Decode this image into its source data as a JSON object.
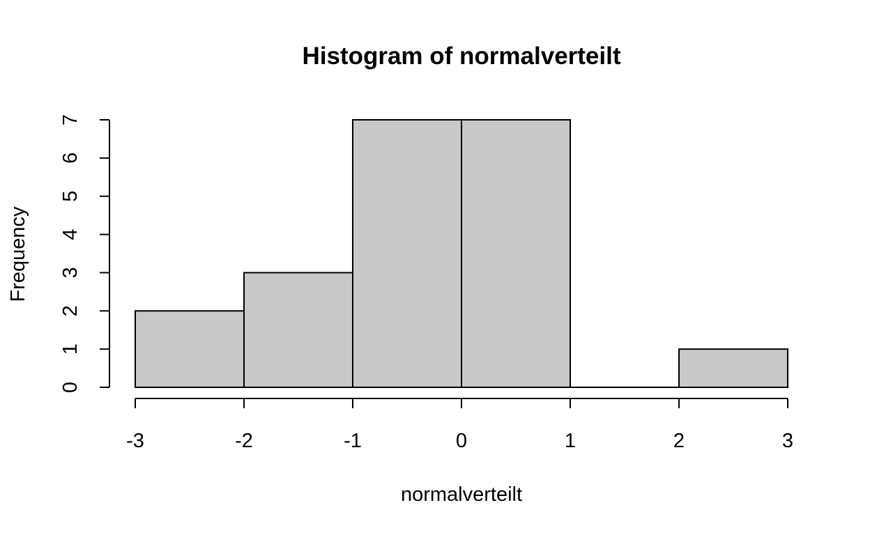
{
  "chart_data": {
    "type": "bar",
    "subtype": "histogram",
    "title": "Histogram of normalverteilt",
    "xlabel": "normalverteilt",
    "ylabel": "Frequency",
    "bins": [
      {
        "from": -3,
        "to": -2,
        "count": 2
      },
      {
        "from": -2,
        "to": -1,
        "count": 3
      },
      {
        "from": -1,
        "to": 0,
        "count": 7
      },
      {
        "from": 0,
        "to": 1,
        "count": 7
      },
      {
        "from": 1,
        "to": 2,
        "count": 0
      },
      {
        "from": 2,
        "to": 3,
        "count": 1
      }
    ],
    "xlim": [
      -3,
      3
    ],
    "ylim": [
      0,
      7
    ],
    "x_ticks": [
      "-3",
      "-2",
      "-1",
      "0",
      "1",
      "2",
      "3"
    ],
    "y_ticks": [
      "0",
      "1",
      "2",
      "3",
      "4",
      "5",
      "6",
      "7"
    ],
    "bar_color": "#c8c8c8",
    "border_color": "#000000",
    "grid": false,
    "legend": "none"
  }
}
